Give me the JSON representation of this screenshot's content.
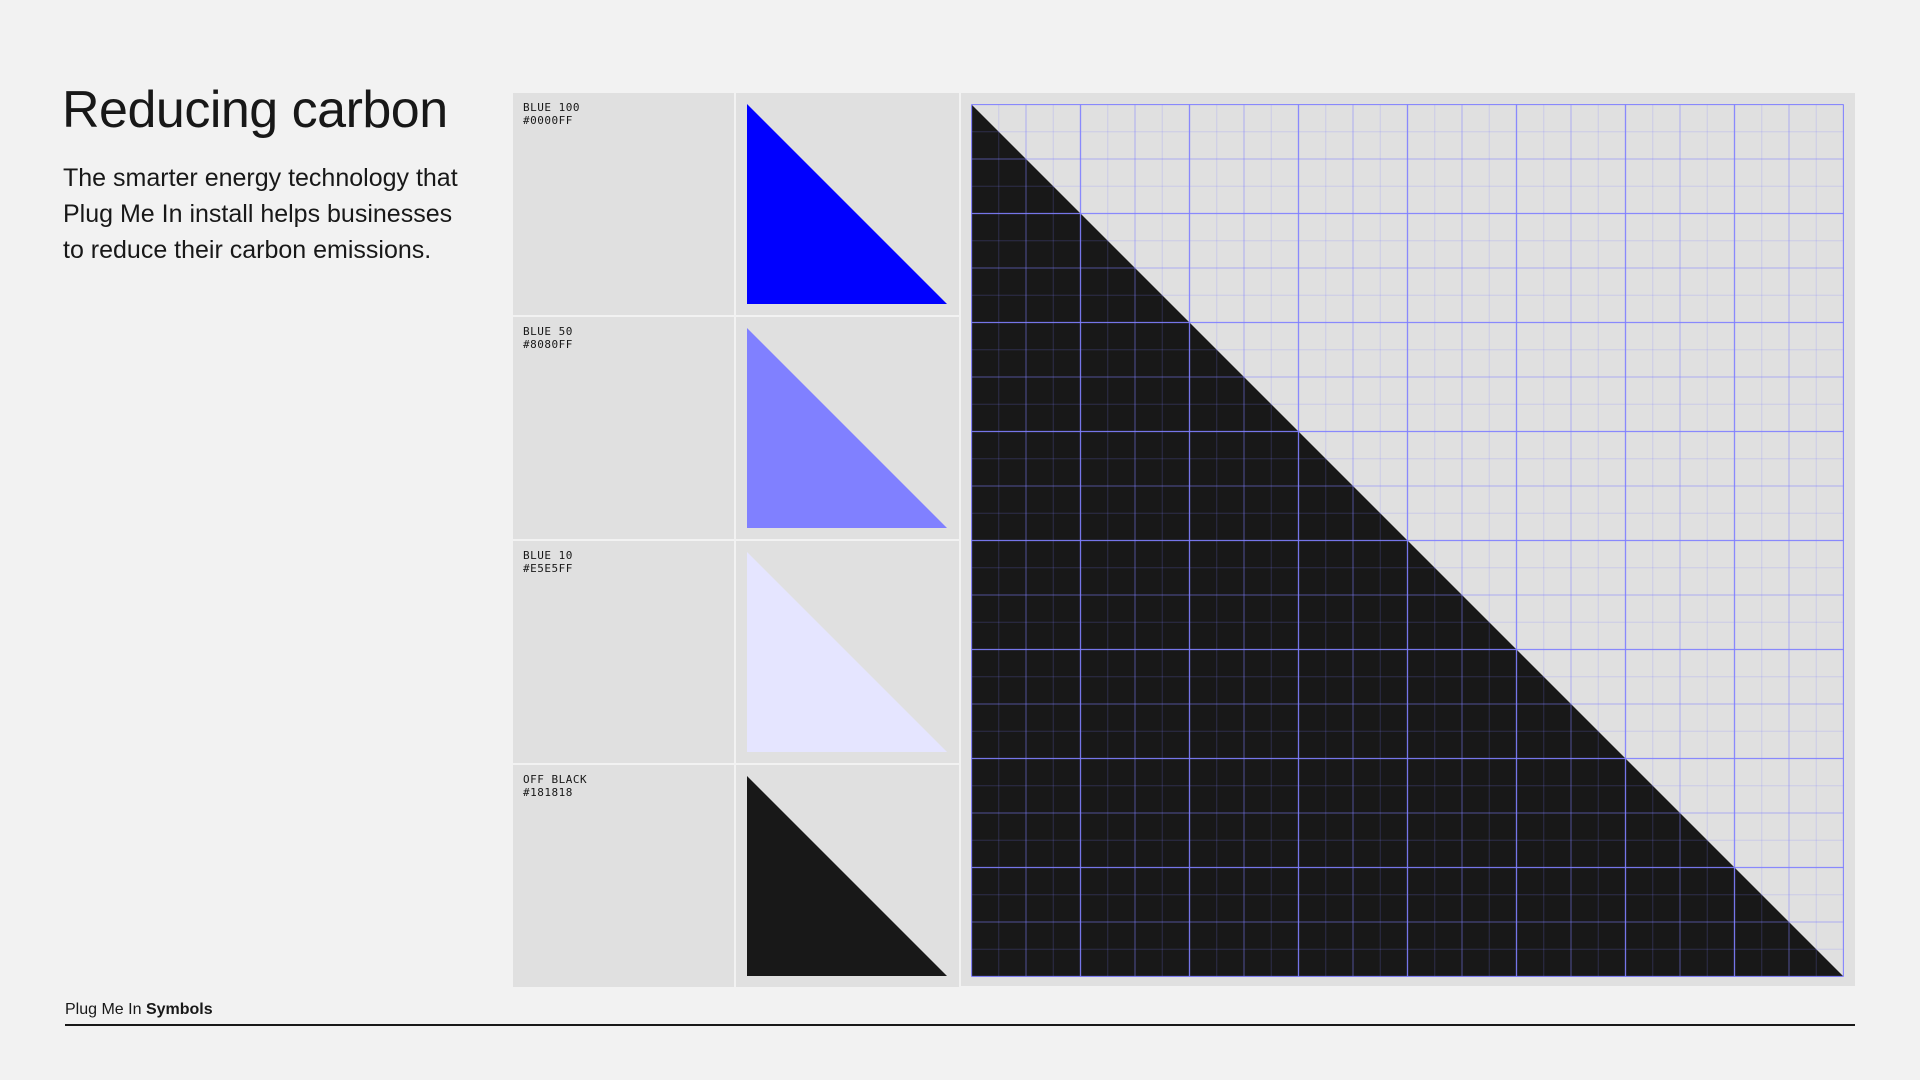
{
  "header": {
    "title": "Reducing carbon",
    "description": "The smarter energy technology that Plug Me In install helps businesses to reduce their carbon emissions."
  },
  "swatches": [
    {
      "name": "BLUE 100",
      "hex": "#0000FF",
      "color": "#0000ff"
    },
    {
      "name": "BLUE 50",
      "hex": "#8080FF",
      "color": "#8080ff"
    },
    {
      "name": "BLUE 10",
      "hex": "#E5E5FF",
      "color": "#e5e5ff"
    },
    {
      "name": "OFF BLACK",
      "hex": "#181818",
      "color": "#181818"
    }
  ],
  "grid": {
    "fill_color": "#181818",
    "line_color": "#8080ff",
    "background": "#e0e0e0"
  },
  "footer": {
    "brand": "Plug Me In",
    "section": "Symbols"
  }
}
